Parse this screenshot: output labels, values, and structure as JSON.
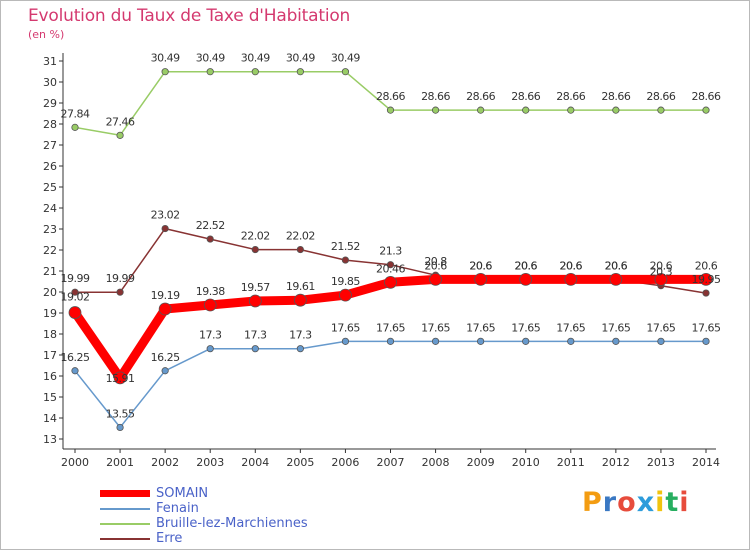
{
  "chart_data": {
    "type": "line",
    "title": "Evolution du Taux de Taxe d'Habitation",
    "subtitle": "(en %)",
    "xlabel": "",
    "ylabel": "",
    "x": [
      "2000",
      "2001",
      "2002",
      "2003",
      "2004",
      "2005",
      "2006",
      "2007",
      "2008",
      "2009",
      "2010",
      "2011",
      "2012",
      "2013",
      "2014"
    ],
    "yticks": [
      "13",
      "14",
      "15",
      "16",
      "17",
      "18",
      "19",
      "20",
      "21",
      "22",
      "23",
      "24",
      "25",
      "26",
      "27",
      "28",
      "29",
      "30",
      "31"
    ],
    "ylim": [
      13,
      31
    ],
    "grid": false,
    "legend_position": "bottom-left",
    "series": [
      {
        "name": "SOMAIN",
        "color": "#ff0000",
        "values": [
          19.02,
          15.91,
          19.19,
          19.38,
          19.57,
          19.61,
          19.85,
          20.46,
          20.6,
          20.6,
          20.6,
          20.6,
          20.6,
          20.6,
          20.6
        ],
        "labels": [
          "19.02",
          "15.91",
          "19.19",
          "19.38",
          "19.57",
          "19.61",
          "19.85",
          "20.46",
          "20.6",
          "20.6",
          "20.6",
          "20.6",
          "20.6",
          "20.6",
          "20.6"
        ]
      },
      {
        "name": "Fenain",
        "color": "#6699cc",
        "values": [
          16.25,
          13.55,
          16.25,
          17.3,
          17.3,
          17.3,
          17.65,
          17.65,
          17.65,
          17.65,
          17.65,
          17.65,
          17.65,
          17.65,
          17.65
        ],
        "labels": [
          "16.25",
          "13.55",
          "16.25",
          "17.3",
          "17.3",
          "17.3",
          "17.65",
          "17.65",
          "17.65",
          "17.65",
          "17.65",
          "17.65",
          "17.65",
          "17.65",
          "17.65"
        ]
      },
      {
        "name": "Bruille-lez-Marchiennes",
        "color": "#99cc66",
        "values": [
          27.84,
          27.46,
          30.49,
          30.49,
          30.49,
          30.49,
          30.49,
          28.66,
          28.66,
          28.66,
          28.66,
          28.66,
          28.66,
          28.66,
          28.66
        ],
        "labels": [
          "27.84",
          "27.46",
          "30.49",
          "30.49",
          "30.49",
          "30.49",
          "30.49",
          "28.66",
          "28.66",
          "28.66",
          "28.66",
          "28.66",
          "28.66",
          "28.66",
          "28.66"
        ]
      },
      {
        "name": "Erre",
        "color": "#883333",
        "values": [
          19.99,
          19.99,
          23.02,
          22.52,
          22.02,
          22.02,
          21.52,
          21.3,
          20.8,
          20.6,
          20.6,
          20.6,
          20.6,
          20.3,
          19.95
        ],
        "labels": [
          "19.99",
          "19.99",
          "23.02",
          "22.52",
          "22.02",
          "22.02",
          "21.52",
          "21.3",
          "20.8",
          "20.6",
          "20.6",
          "20.6",
          "20.6",
          "20.3",
          "19.95"
        ]
      }
    ]
  },
  "logo": {
    "letters": [
      "P",
      "r",
      "o",
      "x",
      "i",
      "t",
      "i"
    ],
    "colors": [
      "#f39c12",
      "#3a78c3",
      "#e74c3c",
      "#2d9cdb",
      "#f1c40f",
      "#27ae60",
      "#e74c3c"
    ]
  }
}
